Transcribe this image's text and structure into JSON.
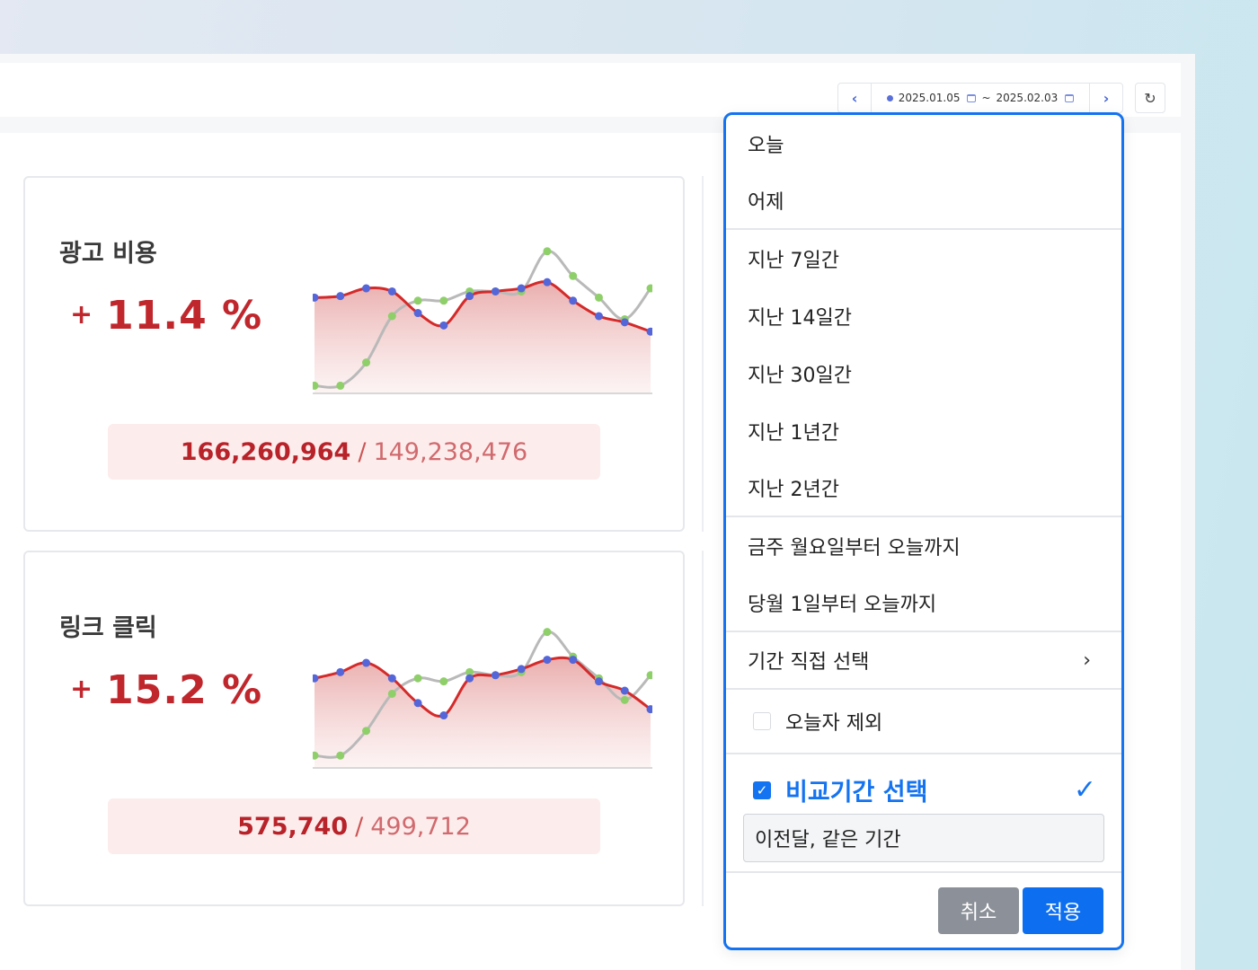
{
  "date_range": {
    "prev_label": "‹",
    "next_label": "›",
    "start": "2025.01.05",
    "separator": "~",
    "end": "2025.02.03",
    "refresh_label": "↻"
  },
  "cards": [
    {
      "title": "광고 비용",
      "plus": "+",
      "change": "11.4 %",
      "current": "166,260,964",
      "separator": "/",
      "previous": "149,238,476"
    },
    {
      "title": "링크 클릭",
      "plus": "+",
      "change": "15.2 %",
      "current": "575,740",
      "separator": "/",
      "previous": "499,712"
    }
  ],
  "chart_data": [
    {
      "type": "area",
      "series": [
        {
          "color": "#d42a2a",
          "values": [
            62,
            63,
            68,
            66,
            52,
            44,
            63,
            66,
            68,
            72,
            60,
            50,
            46,
            40
          ]
        },
        {
          "color": "#8fcf6a",
          "values": [
            5,
            5,
            20,
            50,
            60,
            60,
            66,
            66,
            66,
            92,
            76,
            62,
            48,
            68
          ]
        }
      ]
    },
    {
      "type": "area",
      "series": [
        {
          "color": "#d42a2a",
          "values": [
            58,
            62,
            68,
            58,
            42,
            34,
            58,
            60,
            64,
            70,
            70,
            56,
            50,
            38
          ]
        },
        {
          "color": "#8fcf6a",
          "values": [
            8,
            8,
            24,
            48,
            58,
            56,
            62,
            60,
            62,
            88,
            72,
            58,
            44,
            60
          ]
        }
      ]
    }
  ],
  "dropdown": {
    "items": [
      {
        "label": "오늘"
      },
      {
        "label": "어제"
      },
      {
        "label": "지난 7일간"
      },
      {
        "label": "지난 14일간"
      },
      {
        "label": "지난 30일간"
      },
      {
        "label": "지난 1년간"
      },
      {
        "label": "지난 2년간"
      },
      {
        "label": "금주 월요일부터 오늘까지"
      },
      {
        "label": "당월 1일부터 오늘까지"
      },
      {
        "label": "기간 직접 선택"
      }
    ],
    "chevron": "›",
    "exclude_today": "오늘자 제외",
    "compare_label": "비교기간 선택",
    "compare_check": "✓",
    "compare_value": "이전달, 같은 기간",
    "cancel": "취소",
    "apply": "적용"
  }
}
